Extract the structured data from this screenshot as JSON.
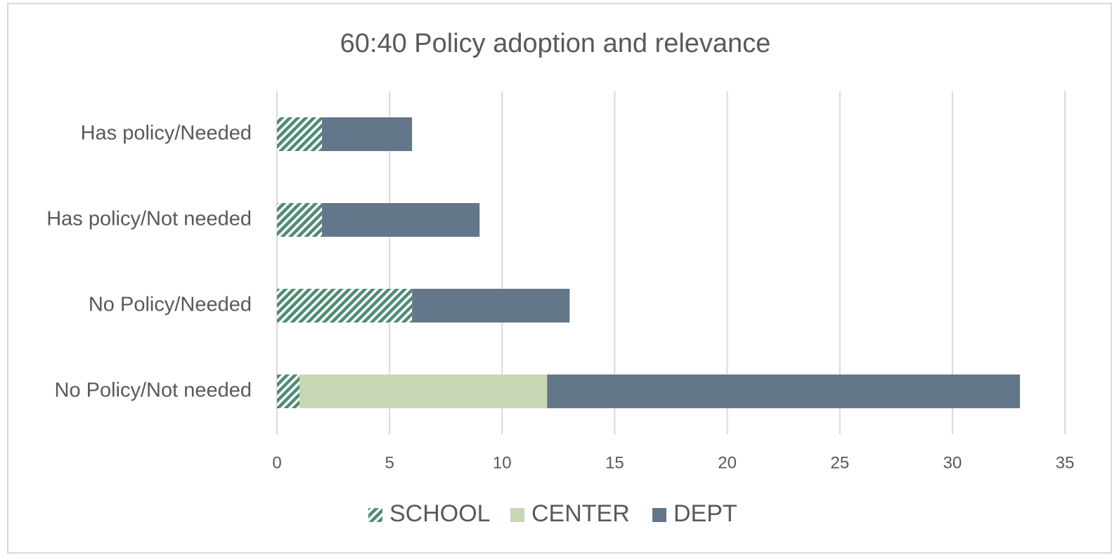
{
  "chart_data": {
    "type": "stacked_barh",
    "title": "60:40 Policy adoption and relevance",
    "categories": [
      "Has policy/Needed",
      "Has policy/Not needed",
      "No Policy/Needed",
      "No Policy/Not needed"
    ],
    "series": [
      {
        "name": "SCHOOL",
        "color": "#4f8c73",
        "pattern": "hatch",
        "values": [
          2,
          2,
          6,
          1
        ]
      },
      {
        "name": "CENTER",
        "color": "#c9d6b4",
        "values": [
          0,
          0,
          0,
          11
        ]
      },
      {
        "name": "DEPT",
        "color": "#647689",
        "values": [
          4,
          7,
          7,
          21
        ]
      }
    ],
    "xlim": [
      0,
      35
    ],
    "xticks": [
      0,
      5,
      10,
      15,
      20,
      25,
      30,
      35
    ],
    "grid": true,
    "legend": "bottom"
  }
}
